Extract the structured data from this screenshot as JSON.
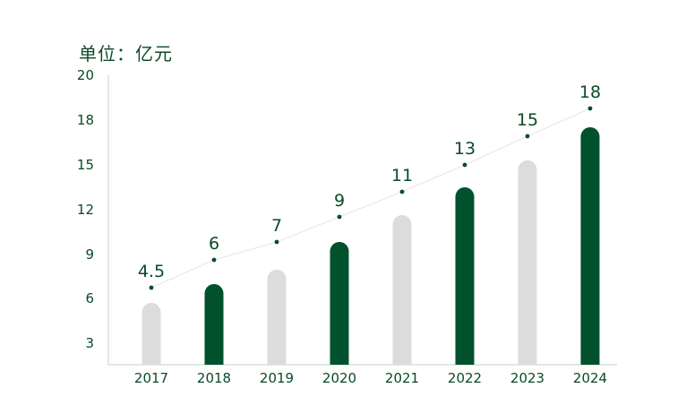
{
  "unit_label": "单位：亿元",
  "colors": {
    "highlight": "#00512c",
    "muted": "#dcdcdc",
    "text": "#0a4a28",
    "axis": "#bcd6c6",
    "trend": "#e6e6e6",
    "marker": "#0a4a28"
  },
  "chart_data": {
    "type": "bar",
    "categories": [
      "2017",
      "2018",
      "2019",
      "2020",
      "2021",
      "2022",
      "2023",
      "2024"
    ],
    "values": [
      4.5,
      6,
      7,
      9,
      11,
      13,
      15,
      18
    ],
    "data_labels": [
      "4.5",
      "6",
      "7",
      "9",
      "11",
      "13",
      "15",
      "18"
    ],
    "highlight": [
      false,
      true,
      false,
      true,
      false,
      true,
      false,
      true
    ],
    "y_ticks": [
      "3",
      "6",
      "9",
      "12",
      "15",
      "18",
      "20"
    ],
    "title": "",
    "xlabel": "",
    "ylabel": "",
    "grid": false,
    "legend": "none",
    "trend_line": true
  }
}
